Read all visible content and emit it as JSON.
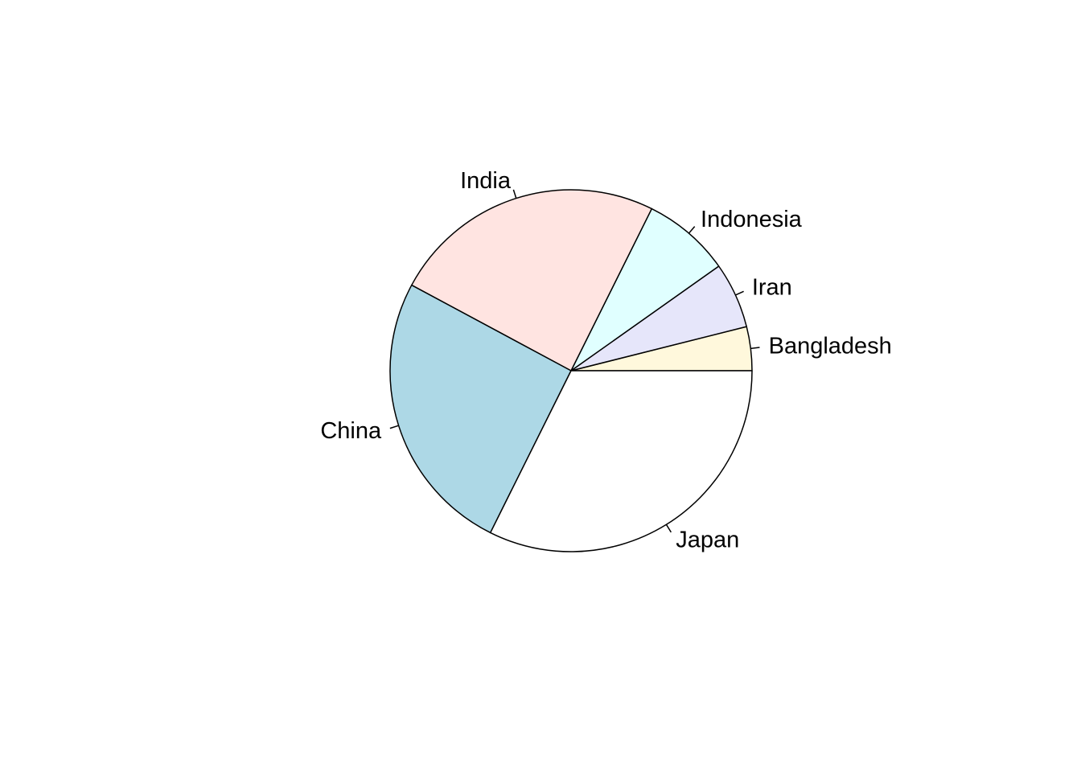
{
  "chart_data": {
    "type": "pie",
    "title": "",
    "direction": "counter-clockwise",
    "start": "3 o'clock",
    "slices": [
      {
        "label": "Bangladesh",
        "value": 4.0,
        "color": "#FFF8DC"
      },
      {
        "label": "Iran",
        "value": 6.0,
        "color": "#E6E6FA"
      },
      {
        "label": "Indonesia",
        "value": 8.0,
        "color": "#E0FFFF"
      },
      {
        "label": "India",
        "value": 25.0,
        "color": "#FFE4E1"
      },
      {
        "label": "China",
        "value": 26.0,
        "color": "#ADD8E6"
      },
      {
        "label": "Japan",
        "value": 33.0,
        "color": "#FFFFFF"
      }
    ]
  }
}
